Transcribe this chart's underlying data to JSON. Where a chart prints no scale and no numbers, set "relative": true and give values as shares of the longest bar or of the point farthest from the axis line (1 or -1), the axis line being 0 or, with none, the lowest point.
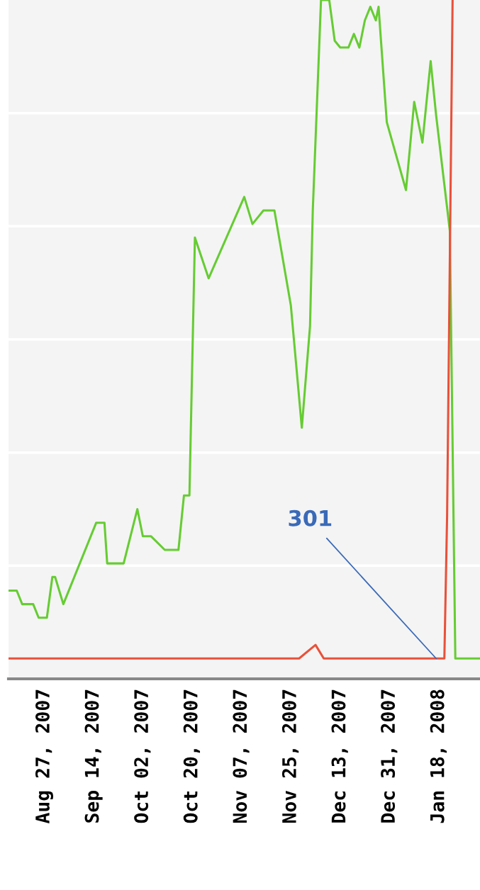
{
  "chart_data": {
    "type": "line",
    "relative": true,
    "xlim": [
      "2007-08-14",
      "2008-02-02"
    ],
    "xticks": [
      {
        "value": "2007-08-27",
        "label": "Aug 27, 2007"
      },
      {
        "value": "2007-09-14",
        "label": "Sep 14, 2007"
      },
      {
        "value": "2007-10-02",
        "label": "Oct 02, 2007"
      },
      {
        "value": "2007-10-20",
        "label": "Oct 20, 2007"
      },
      {
        "value": "2007-11-07",
        "label": "Nov 07, 2007"
      },
      {
        "value": "2007-11-25",
        "label": "Nov 25, 2007"
      },
      {
        "value": "2007-12-13",
        "label": "Dec 13, 2007"
      },
      {
        "value": "2007-12-31",
        "label": "Dec 31, 2007"
      },
      {
        "value": "2008-01-18",
        "label": "Jan 18, 2008"
      }
    ],
    "tick_labels": "x",
    "grid": "y",
    "series": [
      {
        "color": "#66cc33",
        "x": [
          "2007-08-14",
          "2007-08-17",
          "2007-08-19",
          "2007-08-23",
          "2007-08-25",
          "2007-08-28",
          "2007-08-30",
          "2007-08-31",
          "2007-09-03",
          "2007-09-15",
          "2007-09-18",
          "2007-09-19",
          "2007-09-25",
          "2007-09-30",
          "2007-10-02",
          "2007-10-05",
          "2007-10-10",
          "2007-10-15",
          "2007-10-17",
          "2007-10-19",
          "2007-10-21",
          "2007-10-26",
          "2007-11-08",
          "2007-11-11",
          "2007-11-15",
          "2007-11-19",
          "2007-11-25",
          "2007-11-29",
          "2007-12-02",
          "2007-12-03",
          "2007-12-06",
          "2007-12-09",
          "2007-12-11",
          "2007-12-13",
          "2007-12-16",
          "2007-12-18",
          "2007-12-20",
          "2007-12-22",
          "2007-12-24",
          "2007-12-26",
          "2007-12-27",
          "2007-12-30",
          "2008-01-06",
          "2008-01-09",
          "2008-01-12",
          "2008-01-15",
          "2008-01-17",
          "2008-01-22",
          "2008-01-24",
          "2008-02-02"
        ],
        "values": [
          0.13,
          0.13,
          0.11,
          0.11,
          0.09,
          0.09,
          0.15,
          0.15,
          0.11,
          0.23,
          0.23,
          0.17,
          0.17,
          0.25,
          0.21,
          0.21,
          0.19,
          0.19,
          0.27,
          0.27,
          0.65,
          0.59,
          0.71,
          0.67,
          0.69,
          0.69,
          0.55,
          0.37,
          0.52,
          0.69,
          1.0,
          1.0,
          0.94,
          0.93,
          0.93,
          0.95,
          0.93,
          0.97,
          0.99,
          0.97,
          0.99,
          0.82,
          0.72,
          0.85,
          0.79,
          0.91,
          0.83,
          0.66,
          0.03,
          0.03
        ]
      },
      {
        "color": "#e8513a",
        "x": [
          "2007-08-14",
          "2007-11-28",
          "2007-12-04",
          "2007-12-07",
          "2008-01-20",
          "2008-01-21",
          "2008-01-23"
        ],
        "values": [
          0.03,
          0.03,
          0.05,
          0.03,
          0.03,
          0.24,
          1.0
        ]
      }
    ],
    "annotations": [
      {
        "text": "301",
        "x": "2008-01-17",
        "y": 0.03
      }
    ]
  }
}
